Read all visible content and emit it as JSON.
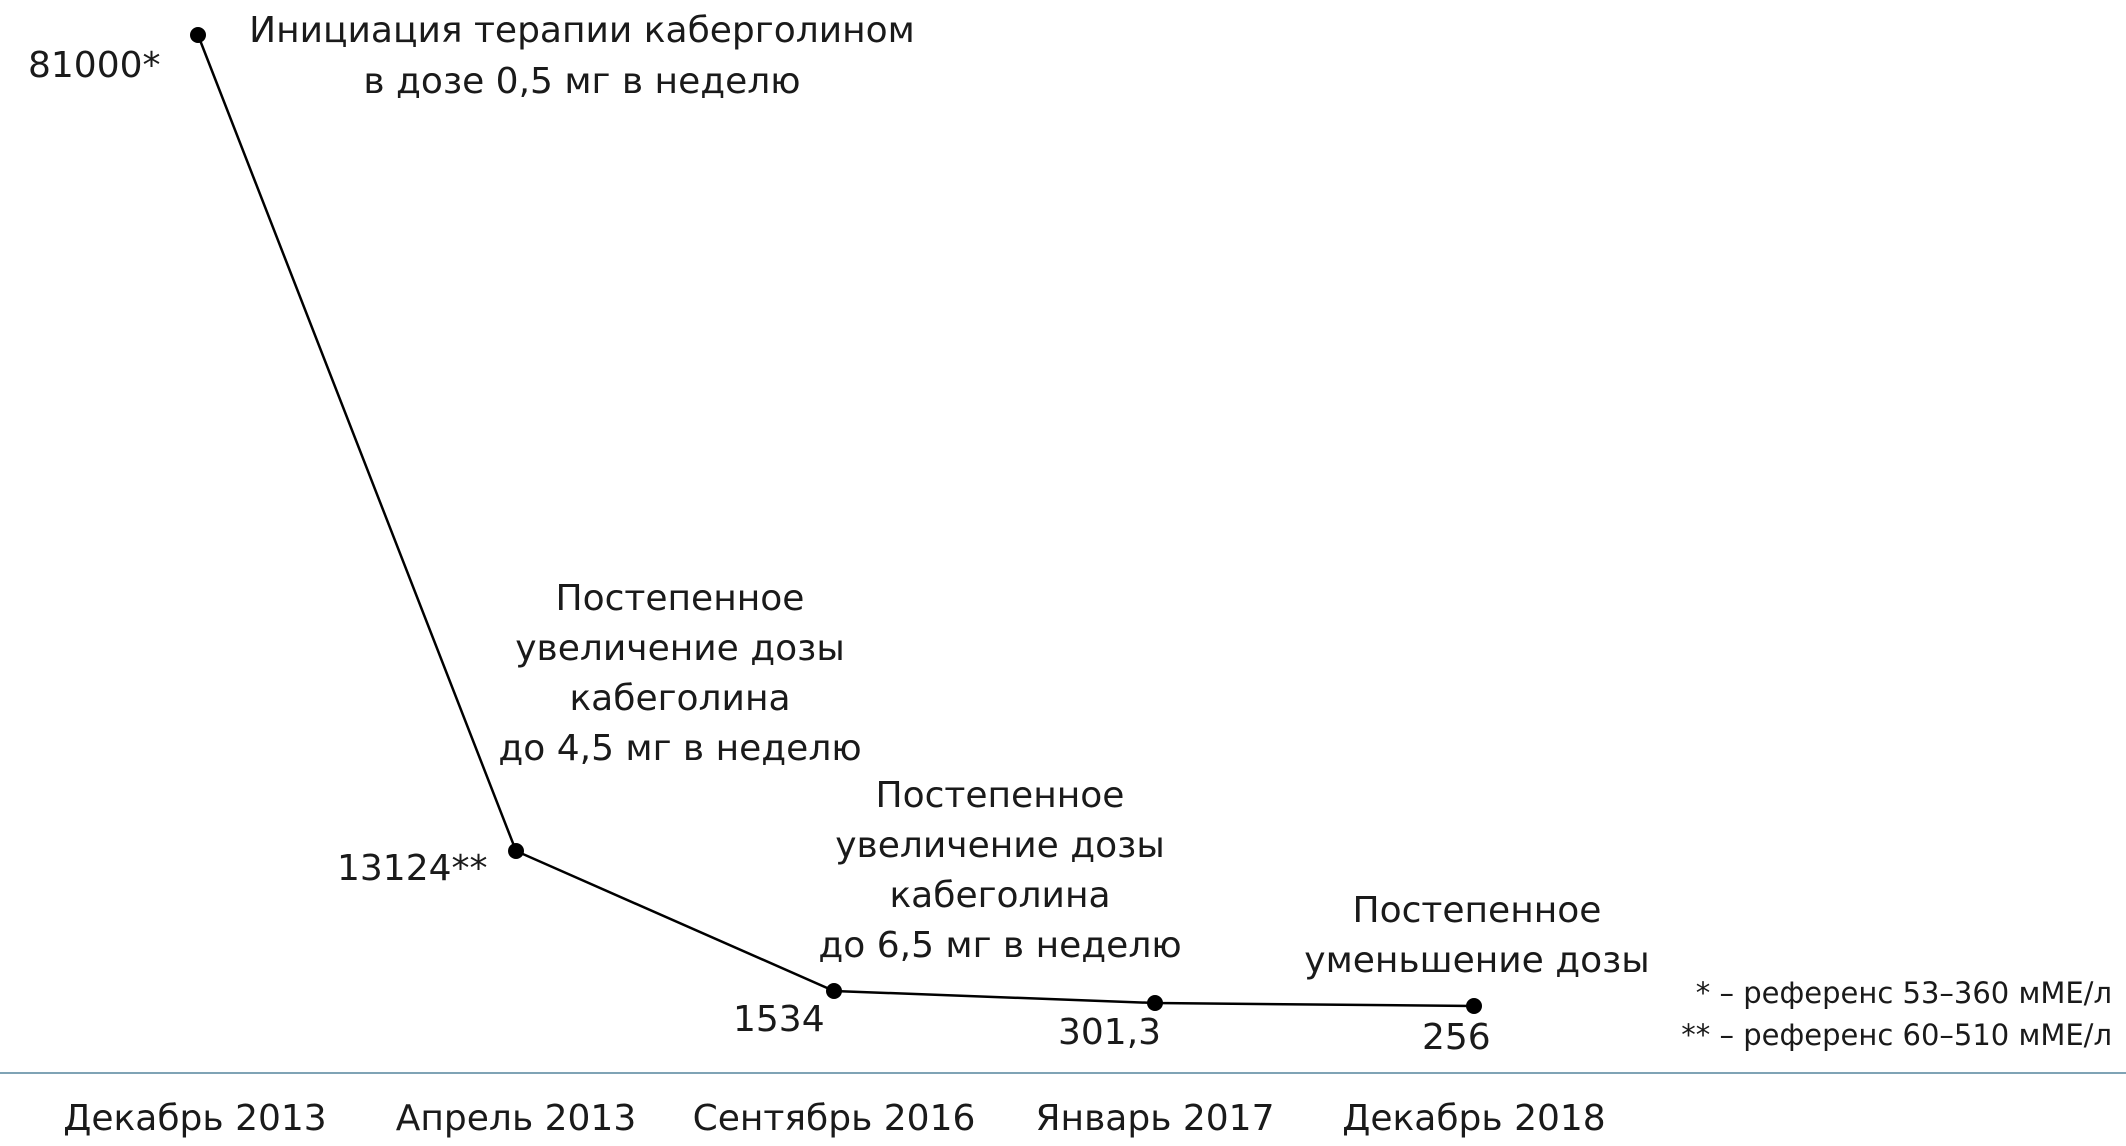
{
  "chart_data": {
    "type": "line",
    "categories": [
      "Декабрь 2013",
      "Апрель 2013",
      "Сентябрь 2016",
      "Январь 2017",
      "Декабрь 2018"
    ],
    "values": [
      81000,
      13124,
      1534,
      301.3,
      256
    ],
    "value_labels": [
      "81000*",
      "13124**",
      "1534",
      "301,3",
      "256"
    ],
    "annotations": [
      {
        "lines": [
          "Инициация терапии каберголином",
          "в дозе 0,5 мг в неделю"
        ]
      },
      {
        "lines": [
          "Постепенное",
          "увеличение дозы",
          "кабеголина",
          "до 4,5 мг в неделю"
        ]
      },
      {
        "lines": [
          "Постепенное",
          "увеличение дозы",
          "кабеголина",
          "до 6,5 мг в неделю"
        ]
      },
      {
        "lines": [
          "Постепенное",
          "уменьшение дозы"
        ]
      }
    ],
    "footnotes": [
      "* – референс 53–360 мМЕ/л",
      "** – референс 60–510 мМЕ/л"
    ],
    "grid": false,
    "legend": "none",
    "line_color": "#000000",
    "axis_color": "#7fa3b5"
  }
}
